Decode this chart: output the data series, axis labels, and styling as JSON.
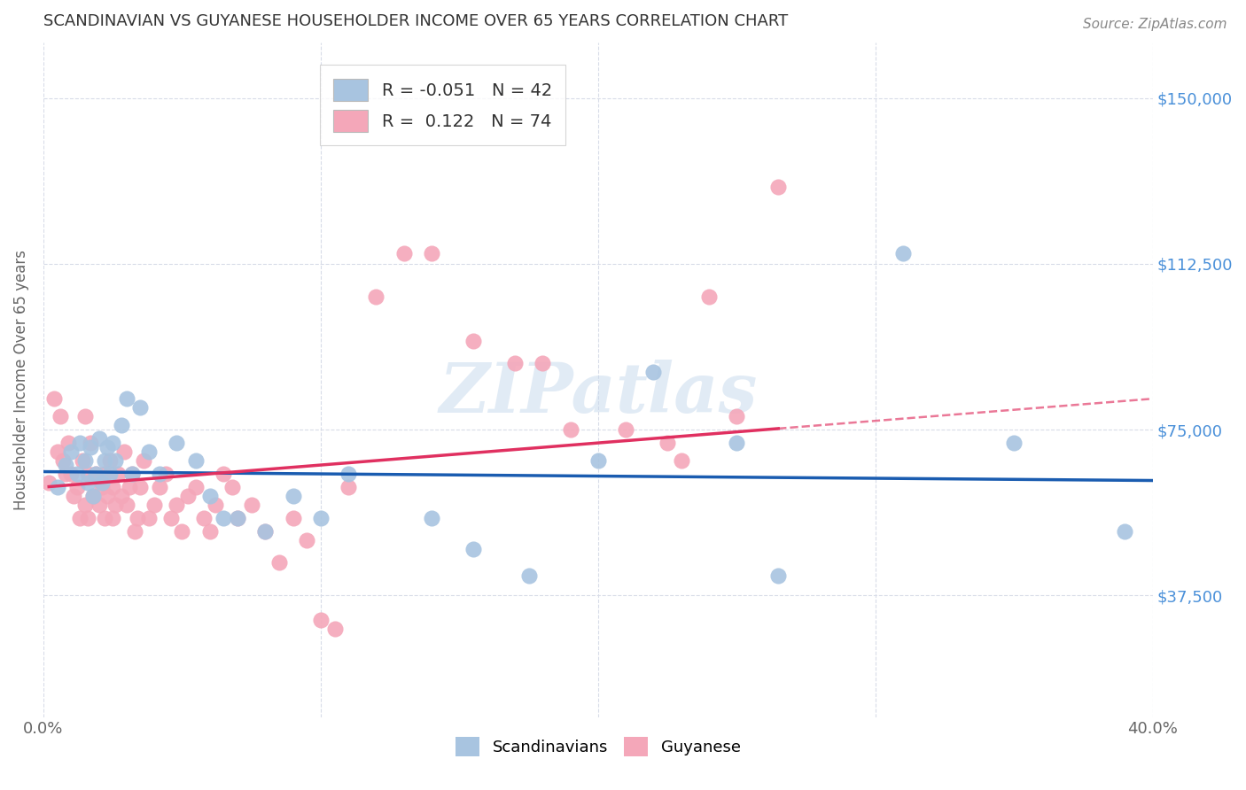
{
  "title": "SCANDINAVIAN VS GUYANESE HOUSEHOLDER INCOME OVER 65 YEARS CORRELATION CHART",
  "source": "Source: ZipAtlas.com",
  "ylabel": "Householder Income Over 65 years",
  "xmin": 0.0,
  "xmax": 0.4,
  "ymin": 10000,
  "ymax": 162500,
  "yticks": [
    37500,
    75000,
    112500,
    150000
  ],
  "ytick_labels": [
    "$37,500",
    "$75,000",
    "$112,500",
    "$150,000"
  ],
  "xticks": [
    0.0,
    0.1,
    0.2,
    0.3,
    0.4
  ],
  "xtick_labels": [
    "0.0%",
    "",
    "",
    "",
    "40.0%"
  ],
  "scand_color": "#a8c4e0",
  "guyan_color": "#f4a7b9",
  "scand_line_color": "#1a5cb0",
  "guyan_line_color": "#e03060",
  "background_color": "#ffffff",
  "grid_color": "#d8dce8",
  "watermark": "ZIPatlas",
  "scand_R": -0.051,
  "guyan_R": 0.122,
  "scand_N": 42,
  "guyan_N": 74,
  "scandinavian_x": [
    0.005,
    0.008,
    0.01,
    0.012,
    0.013,
    0.015,
    0.016,
    0.017,
    0.018,
    0.019,
    0.02,
    0.021,
    0.022,
    0.023,
    0.024,
    0.025,
    0.026,
    0.028,
    0.03,
    0.032,
    0.035,
    0.038,
    0.042,
    0.048,
    0.055,
    0.06,
    0.065,
    0.07,
    0.08,
    0.09,
    0.1,
    0.11,
    0.14,
    0.155,
    0.175,
    0.2,
    0.22,
    0.25,
    0.265,
    0.31,
    0.35,
    0.39
  ],
  "scandinavian_y": [
    62000,
    67000,
    70000,
    65000,
    72000,
    68000,
    63000,
    71000,
    60000,
    65000,
    73000,
    63000,
    68000,
    71000,
    65000,
    72000,
    68000,
    76000,
    82000,
    65000,
    80000,
    70000,
    65000,
    72000,
    68000,
    60000,
    55000,
    55000,
    52000,
    60000,
    55000,
    65000,
    55000,
    48000,
    42000,
    68000,
    88000,
    72000,
    42000,
    115000,
    72000,
    52000
  ],
  "guyanese_x": [
    0.002,
    0.004,
    0.005,
    0.006,
    0.007,
    0.008,
    0.009,
    0.01,
    0.011,
    0.012,
    0.013,
    0.014,
    0.015,
    0.015,
    0.016,
    0.016,
    0.017,
    0.018,
    0.019,
    0.02,
    0.021,
    0.022,
    0.022,
    0.023,
    0.024,
    0.025,
    0.025,
    0.026,
    0.027,
    0.028,
    0.029,
    0.03,
    0.031,
    0.032,
    0.033,
    0.034,
    0.035,
    0.036,
    0.038,
    0.04,
    0.042,
    0.044,
    0.046,
    0.048,
    0.05,
    0.052,
    0.055,
    0.058,
    0.06,
    0.062,
    0.065,
    0.068,
    0.07,
    0.075,
    0.08,
    0.085,
    0.09,
    0.095,
    0.1,
    0.105,
    0.11,
    0.12,
    0.13,
    0.14,
    0.155,
    0.17,
    0.18,
    0.19,
    0.21,
    0.225,
    0.23,
    0.24,
    0.25,
    0.265
  ],
  "guyanese_y": [
    63000,
    82000,
    70000,
    78000,
    68000,
    65000,
    72000,
    65000,
    60000,
    62000,
    55000,
    68000,
    58000,
    78000,
    65000,
    55000,
    72000,
    60000,
    65000,
    58000,
    62000,
    55000,
    65000,
    60000,
    68000,
    62000,
    55000,
    58000,
    65000,
    60000,
    70000,
    58000,
    62000,
    65000,
    52000,
    55000,
    62000,
    68000,
    55000,
    58000,
    62000,
    65000,
    55000,
    58000,
    52000,
    60000,
    62000,
    55000,
    52000,
    58000,
    65000,
    62000,
    55000,
    58000,
    52000,
    45000,
    55000,
    50000,
    32000,
    30000,
    62000,
    105000,
    115000,
    115000,
    95000,
    90000,
    90000,
    75000,
    75000,
    72000,
    68000,
    105000,
    78000,
    130000
  ]
}
